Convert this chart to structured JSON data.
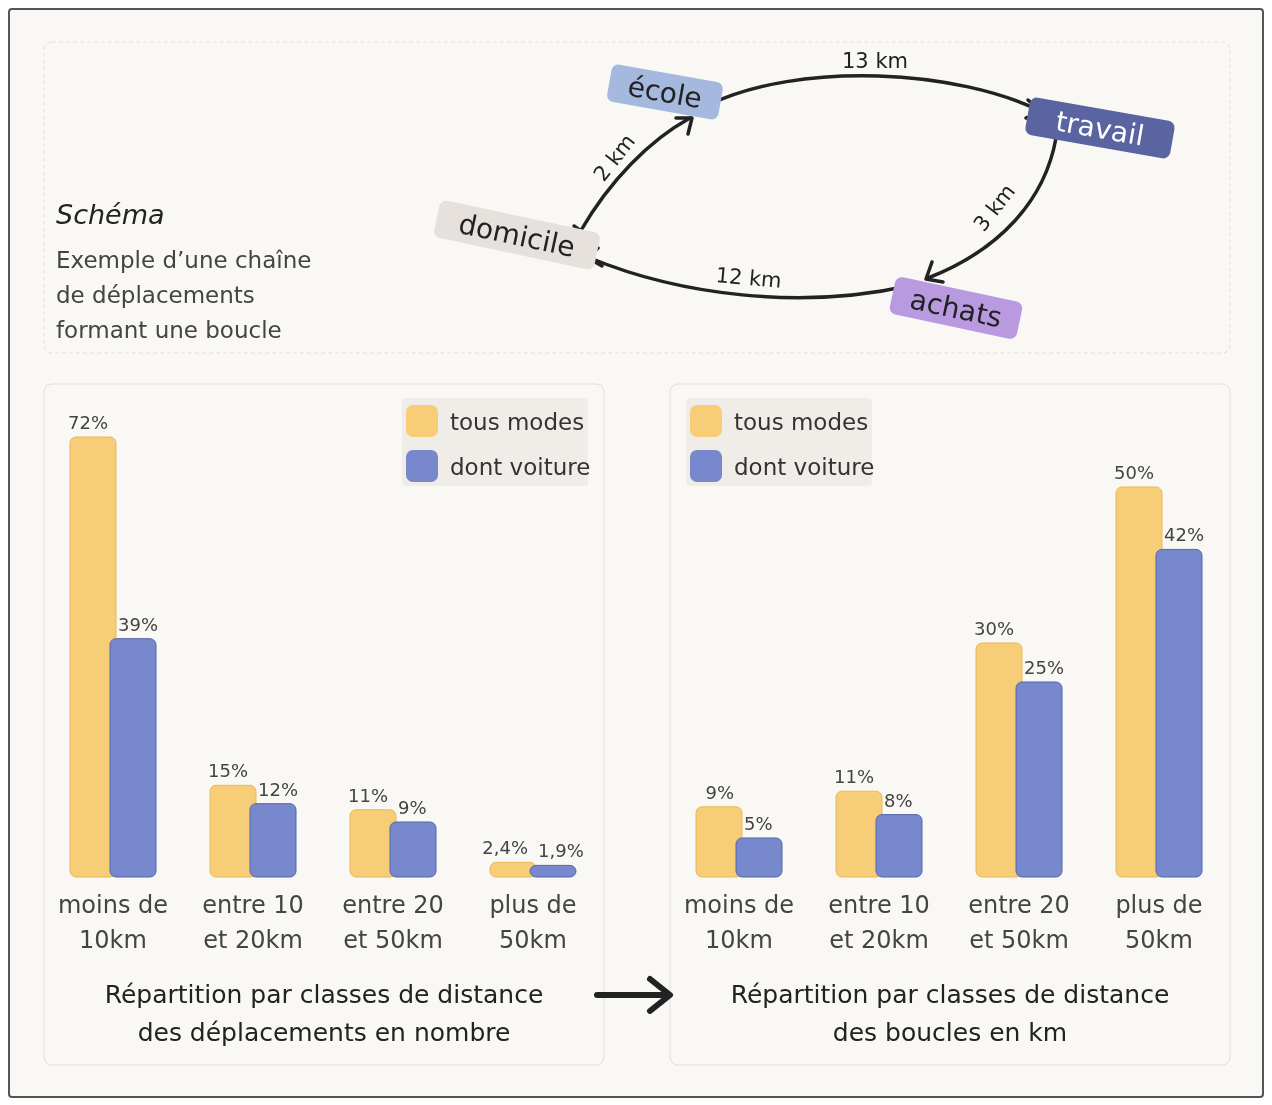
{
  "chart_data": [
    {
      "type": "other",
      "title": "Schéma",
      "subtitle": "Exemple d’une chaîne de déplacements formant une boucle",
      "annotations": [
        "domicile",
        "école",
        "travail",
        "achats",
        "2 km",
        "13 km",
        "3 km",
        "12 km"
      ]
    },
    {
      "type": "bar",
      "title": "Répartition par classes de distance des déplacements en nombre",
      "categories": [
        "moins de 10km",
        "entre 10 et 20km",
        "entre 20 et 50km",
        "plus de 50km"
      ],
      "legend": "top right",
      "series": [
        {
          "name": "tous modes",
          "color": "#f7cd78",
          "values": [
            72,
            15,
            11,
            2.4
          ],
          "value_labels": [
            "72%",
            "15%",
            "11%",
            "2,4%"
          ]
        },
        {
          "name": "dont voiture",
          "color": "#7788cc",
          "values": [
            39,
            12,
            9,
            1.9
          ],
          "value_labels": [
            "39%",
            "12%",
            "9%",
            "1,9%"
          ]
        }
      ]
    },
    {
      "type": "bar",
      "title": "Répartition par classes de distance des boucles en km",
      "categories": [
        "moins de 10km",
        "entre 10 et 20km",
        "entre 20 et 50km",
        "plus de 50km"
      ],
      "legend": "top left",
      "series": [
        {
          "name": "tous modes",
          "color": "#f7cd78",
          "values": [
            9,
            11,
            30,
            50
          ],
          "value_labels": [
            "9%",
            "11%",
            "30%",
            "50%"
          ]
        },
        {
          "name": "dont voiture",
          "color": "#7788cc",
          "values": [
            5,
            8,
            25,
            42
          ],
          "value_labels": [
            "5%",
            "8%",
            "25%",
            "42%"
          ]
        }
      ]
    }
  ]
}
